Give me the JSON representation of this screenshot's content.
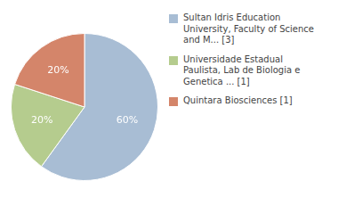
{
  "chart_data": {
    "type": "pie",
    "categories": [
      "Sultan Idris Education\nUniversity, Faculty of Science\nand M... [3]",
      "Universidade Estadual\nPaulista, Lab de Biologia e\nGenetica ... [1]",
      "Quintara Biosciences [1]"
    ],
    "values": [
      60,
      20,
      20
    ],
    "value_labels": [
      "60%",
      "20%",
      "20%"
    ],
    "colors": [
      "#a8bdd4",
      "#b5cc8e",
      "#d4856a"
    ],
    "data_labels": true,
    "legend": "right"
  }
}
